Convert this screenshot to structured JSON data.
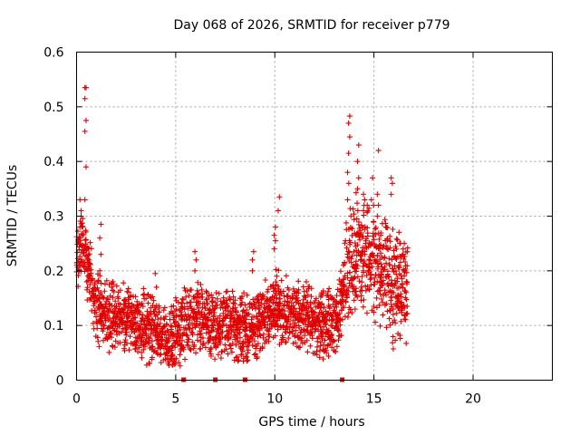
{
  "chart_data": {
    "type": "scatter",
    "title": "Day 068 of 2026, SRMTID for receiver p779",
    "xlabel": "GPS time / hours",
    "ylabel": "SRMTID / TECUs",
    "xlim": [
      0,
      24
    ],
    "ylim": [
      0,
      0.6
    ],
    "xticks": [
      0,
      5,
      10,
      15,
      20
    ],
    "xtick_labels": [
      "0",
      "5",
      "10",
      "15",
      "20"
    ],
    "yticks": [
      0,
      0.1,
      0.2,
      0.3,
      0.4,
      0.5,
      0.6
    ],
    "ytick_labels": [
      "0",
      "0.1",
      "0.2",
      "0.3",
      "0.4",
      "0.5",
      "0.6"
    ],
    "grid": true,
    "color": "#e00000",
    "marker": "plus",
    "gap_markers_x": [
      5.4,
      7.0,
      8.5,
      13.4
    ],
    "profile": [
      [
        0.0,
        0.21
      ],
      [
        0.3,
        0.25
      ],
      [
        0.6,
        0.2
      ],
      [
        1.0,
        0.13
      ],
      [
        1.5,
        0.12
      ],
      [
        2.5,
        0.11
      ],
      [
        3.5,
        0.1
      ],
      [
        4.3,
        0.08
      ],
      [
        4.8,
        0.07
      ],
      [
        5.3,
        0.1
      ],
      [
        6.0,
        0.12
      ],
      [
        7.0,
        0.1
      ],
      [
        8.0,
        0.1
      ],
      [
        8.8,
        0.09
      ],
      [
        9.5,
        0.12
      ],
      [
        10.0,
        0.14
      ],
      [
        10.5,
        0.12
      ],
      [
        11.0,
        0.12
      ],
      [
        12.0,
        0.11
      ],
      [
        12.8,
        0.1
      ],
      [
        13.3,
        0.13
      ],
      [
        13.6,
        0.2
      ],
      [
        14.0,
        0.24
      ],
      [
        14.5,
        0.23
      ],
      [
        15.0,
        0.21
      ],
      [
        15.5,
        0.21
      ],
      [
        16.0,
        0.17
      ],
      [
        16.7,
        0.18
      ]
    ],
    "spikes": [
      {
        "x": 0.2,
        "y": [
          0.28,
          0.31,
          0.33,
          0.3,
          0.26
        ]
      },
      {
        "x": 0.45,
        "y": [
          0.33,
          0.39,
          0.455,
          0.475,
          0.515,
          0.535,
          0.535
        ]
      },
      {
        "x": 0.6,
        "y": [
          0.24,
          0.22,
          0.2
        ]
      },
      {
        "x": 1.2,
        "y": [
          0.2,
          0.23,
          0.26,
          0.285
        ]
      },
      {
        "x": 1.8,
        "y": [
          0.17,
          0.18
        ]
      },
      {
        "x": 4.0,
        "y": [
          0.195,
          0.17
        ]
      },
      {
        "x": 6.0,
        "y": [
          0.2,
          0.22,
          0.235
        ]
      },
      {
        "x": 8.9,
        "y": [
          0.22,
          0.235,
          0.2
        ]
      },
      {
        "x": 10.0,
        "y": [
          0.24,
          0.255,
          0.265,
          0.28
        ]
      },
      {
        "x": 10.2,
        "y": [
          0.31,
          0.335
        ]
      },
      {
        "x": 13.7,
        "y": [
          0.33,
          0.36,
          0.38
        ]
      },
      {
        "x": 13.75,
        "y": [
          0.415,
          0.445,
          0.47,
          0.483
        ]
      },
      {
        "x": 14.2,
        "y": [
          0.35,
          0.37,
          0.4,
          0.43
        ]
      },
      {
        "x": 14.5,
        "y": [
          0.31,
          0.33,
          0.34
        ]
      },
      {
        "x": 14.9,
        "y": [
          0.33,
          0.37
        ]
      },
      {
        "x": 15.2,
        "y": [
          0.3,
          0.32,
          0.34,
          0.42
        ]
      },
      {
        "x": 15.9,
        "y": [
          0.34,
          0.36,
          0.37
        ]
      },
      {
        "x": 16.0,
        "y": [
          0.12,
          0.11
        ]
      },
      {
        "x": 16.5,
        "y": [
          0.24,
          0.25,
          0.23
        ]
      }
    ]
  }
}
